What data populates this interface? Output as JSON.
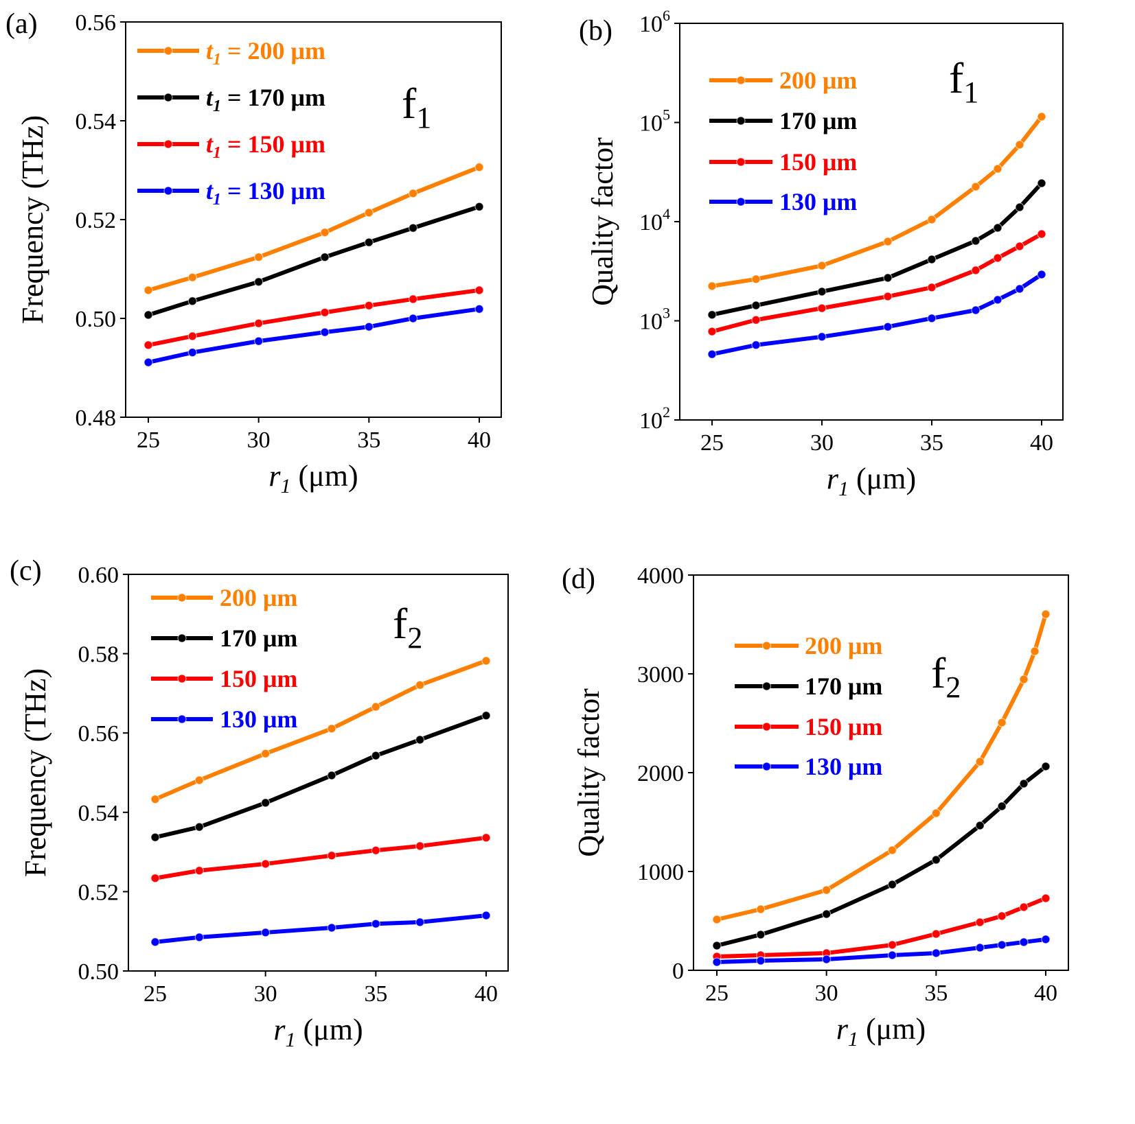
{
  "colors": {
    "200": "#ff7f00",
    "170": "#000000",
    "150": "#ff0000",
    "130": "#0000ff"
  },
  "chart_data": [
    {
      "panel_label": "(a)",
      "type": "line",
      "annotation": {
        "main": "f",
        "sub": "1"
      },
      "xlabel": {
        "var": "r",
        "sub": "1",
        "unit": " (μm)"
      },
      "ylabel": "Frequency (THz)",
      "xlim": [
        24,
        41.0
      ],
      "ylim": [
        0.48,
        0.56
      ],
      "yscale": "linear",
      "xticks": [
        25,
        30,
        35,
        40
      ],
      "yticks": [
        "0.48",
        "0.50",
        "0.52",
        "0.54",
        "0.56"
      ],
      "legend_placement": "top-left",
      "series": [
        {
          "name": "t1 = 200 μm",
          "color": "#ff7f00",
          "x": [
            25,
            27,
            30,
            33,
            35,
            37,
            40
          ],
          "y": [
            0.5057,
            0.5083,
            0.5124,
            0.5174,
            0.5214,
            0.5253,
            0.5306
          ]
        },
        {
          "name": "t1 = 170 μm",
          "color": "#000000",
          "x": [
            25,
            27,
            30,
            33,
            35,
            37,
            40
          ],
          "y": [
            0.5007,
            0.5035,
            0.5074,
            0.5124,
            0.5154,
            0.5183,
            0.5226
          ]
        },
        {
          "name": "t1 = 150 μm",
          "color": "#ff0000",
          "x": [
            25,
            27,
            30,
            33,
            35,
            37,
            40
          ],
          "y": [
            0.4946,
            0.4964,
            0.499,
            0.5012,
            0.5026,
            0.5039,
            0.5057
          ]
        },
        {
          "name": "t1 = 130 μm",
          "color": "#0000ff",
          "x": [
            25,
            27,
            30,
            33,
            35,
            37,
            40
          ],
          "y": [
            0.4911,
            0.4931,
            0.4954,
            0.4972,
            0.4983,
            0.5,
            0.5019
          ]
        }
      ]
    },
    {
      "panel_label": "(b)",
      "type": "line",
      "annotation": {
        "main": "f",
        "sub": "1"
      },
      "xlabel": {
        "var": "r",
        "sub": "1",
        "unit": " (μm)"
      },
      "ylabel": "Quality factor",
      "xlim": [
        24,
        41.0
      ],
      "ylim": [
        100,
        1000000
      ],
      "yscale": "log",
      "xticks": [
        25,
        30,
        35,
        40
      ],
      "yticks": [
        "2",
        "3",
        "4",
        "5",
        "6"
      ],
      "legend_placement": "top-left",
      "series": [
        {
          "name": "200 μm",
          "color": "#ff7f00",
          "x": [
            25,
            27,
            30,
            33,
            35,
            37,
            38,
            39,
            40
          ],
          "y": [
            2240,
            2630,
            3600,
            6300,
            10500,
            22500,
            34100,
            59600,
            114500
          ]
        },
        {
          "name": "170 μm",
          "color": "#000000",
          "x": [
            25,
            27,
            30,
            33,
            35,
            37,
            38,
            39,
            40
          ],
          "y": [
            1150,
            1430,
            1970,
            2710,
            4160,
            6400,
            8660,
            13970,
            24400
          ]
        },
        {
          "name": "150 μm",
          "color": "#ff0000",
          "x": [
            25,
            27,
            30,
            33,
            35,
            37,
            38,
            39,
            40
          ],
          "y": [
            780,
            1020,
            1340,
            1760,
            2170,
            3230,
            4300,
            5640,
            7500
          ]
        },
        {
          "name": "130 μm",
          "color": "#0000ff",
          "x": [
            25,
            27,
            30,
            33,
            35,
            37,
            38,
            39,
            40
          ],
          "y": [
            460,
            570,
            690,
            870,
            1060,
            1280,
            1630,
            2100,
            2930
          ]
        }
      ]
    },
    {
      "panel_label": "(c)",
      "type": "line",
      "annotation": {
        "main": "f",
        "sub": "2"
      },
      "xlabel": {
        "var": "r",
        "sub": "1",
        "unit": " (μm)"
      },
      "ylabel": "Frequency (THz)",
      "xlim": [
        24,
        41.0
      ],
      "ylim": [
        0.5,
        0.6
      ],
      "yscale": "linear",
      "xticks": [
        25,
        30,
        35,
        40
      ],
      "yticks": [
        "0.50",
        "0.52",
        "0.54",
        "0.56",
        "0.58",
        "0.60"
      ],
      "legend_placement": "top-left",
      "series": [
        {
          "name": "200 μm",
          "color": "#ff7f00",
          "x": [
            25,
            27,
            30,
            33,
            35,
            37,
            40
          ],
          "y": [
            0.5433,
            0.5481,
            0.5548,
            0.5611,
            0.5666,
            0.5721,
            0.5782
          ]
        },
        {
          "name": "170 μm",
          "color": "#000000",
          "x": [
            25,
            27,
            30,
            33,
            35,
            37,
            40
          ],
          "y": [
            0.5337,
            0.5363,
            0.5424,
            0.5493,
            0.5543,
            0.5583,
            0.5644
          ]
        },
        {
          "name": "150 μm",
          "color": "#ff0000",
          "x": [
            25,
            27,
            30,
            33,
            35,
            37,
            40
          ],
          "y": [
            0.5234,
            0.5253,
            0.527,
            0.5291,
            0.5304,
            0.5315,
            0.5336
          ]
        },
        {
          "name": "130 μm",
          "color": "#0000ff",
          "x": [
            25,
            27,
            30,
            33,
            35,
            37,
            40
          ],
          "y": [
            0.5073,
            0.5085,
            0.5097,
            0.5109,
            0.5119,
            0.5123,
            0.514
          ]
        }
      ]
    },
    {
      "panel_label": "(d)",
      "type": "line",
      "annotation": {
        "main": "f",
        "sub": "2"
      },
      "xlabel": {
        "var": "r",
        "sub": "1",
        "unit": " (μm)"
      },
      "ylabel": "Quality factor",
      "xlim": [
        24,
        41.0
      ],
      "ylim": [
        0,
        4000
      ],
      "yscale": "linear",
      "xticks": [
        25,
        30,
        35,
        40
      ],
      "yticks": [
        "0",
        "1000",
        "2000",
        "3000",
        "4000"
      ],
      "legend_placement": "top-left",
      "series": [
        {
          "name": "200 μm",
          "color": "#ff7f00",
          "x": [
            25,
            27,
            30,
            33,
            35,
            37,
            38,
            39,
            39.5,
            40
          ],
          "y": [
            514,
            618,
            812,
            1215,
            1590,
            2111,
            2507,
            2944,
            3229,
            3604
          ]
        },
        {
          "name": "170 μm",
          "color": "#000000",
          "x": [
            25,
            27,
            30,
            33,
            35,
            37,
            38,
            39,
            40
          ],
          "y": [
            250,
            361,
            569,
            868,
            1118,
            1465,
            1660,
            1889,
            2063
          ]
        },
        {
          "name": "150 μm",
          "color": "#ff0000",
          "x": [
            25,
            27,
            30,
            33,
            35,
            37,
            38,
            39,
            40
          ],
          "y": [
            139,
            153,
            174,
            257,
            368,
            486,
            549,
            639,
            729
          ]
        },
        {
          "name": "130 μm",
          "color": "#0000ff",
          "x": [
            25,
            27,
            30,
            33,
            35,
            37,
            38,
            39,
            40
          ],
          "y": [
            83,
            97,
            111,
            153,
            174,
            229,
            257,
            285,
            313
          ]
        }
      ]
    }
  ]
}
